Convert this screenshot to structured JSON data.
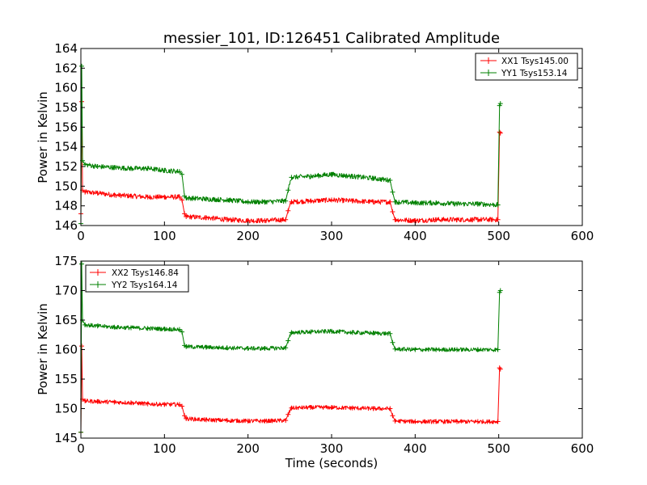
{
  "figure": {
    "title": "messier_101, ID:126451 Calibrated Amplitude"
  },
  "chart_data": [
    {
      "type": "line",
      "title": "messier_101, ID:126451 Calibrated Amplitude",
      "xlabel": "",
      "ylabel": "Power in Kelvin",
      "xlim": [
        0,
        600
      ],
      "ylim": [
        146,
        164
      ],
      "xticks": [
        0,
        100,
        200,
        300,
        400,
        500,
        600
      ],
      "yticks": [
        146,
        148,
        150,
        152,
        154,
        156,
        158,
        160,
        162,
        164
      ],
      "grid": false,
      "legend_position": "top-right",
      "marker": "+",
      "series": [
        {
          "name": "XX1 Tsys145.00",
          "color": "#ff0000",
          "points": [
            [
              0,
              147.2
            ],
            [
              1,
              158.6
            ],
            [
              2,
              149.6
            ],
            [
              5,
              149.4
            ],
            [
              20,
              149.3
            ],
            [
              40,
              149.1
            ],
            [
              60,
              149.0
            ],
            [
              80,
              148.9
            ],
            [
              100,
              148.9
            ],
            [
              118,
              148.9
            ],
            [
              121,
              148.6
            ],
            [
              124,
              147.2
            ],
            [
              126,
              146.9
            ],
            [
              150,
              146.8
            ],
            [
              175,
              146.6
            ],
            [
              200,
              146.5
            ],
            [
              220,
              146.5
            ],
            [
              245,
              146.6
            ],
            [
              248,
              147.5
            ],
            [
              252,
              148.4
            ],
            [
              275,
              148.5
            ],
            [
              300,
              148.6
            ],
            [
              325,
              148.5
            ],
            [
              350,
              148.4
            ],
            [
              370,
              148.4
            ],
            [
              373,
              147.4
            ],
            [
              376,
              146.6
            ],
            [
              400,
              146.5
            ],
            [
              425,
              146.6
            ],
            [
              450,
              146.6
            ],
            [
              475,
              146.6
            ],
            [
              499,
              146.6
            ],
            [
              501,
              155.5
            ],
            [
              502,
              155.4
            ]
          ],
          "noise": 0.25
        },
        {
          "name": "YY1 Tsys153.14",
          "color": "#008000",
          "points": [
            [
              0,
              146.2
            ],
            [
              1,
              162.2
            ],
            [
              2,
              152.6
            ],
            [
              5,
              152.2
            ],
            [
              20,
              152.0
            ],
            [
              40,
              151.9
            ],
            [
              60,
              151.8
            ],
            [
              80,
              151.8
            ],
            [
              100,
              151.6
            ],
            [
              118,
              151.5
            ],
            [
              121,
              151.2
            ],
            [
              124,
              149.0
            ],
            [
              126,
              148.8
            ],
            [
              150,
              148.7
            ],
            [
              175,
              148.6
            ],
            [
              200,
              148.4
            ],
            [
              220,
              148.4
            ],
            [
              245,
              148.5
            ],
            [
              248,
              149.6
            ],
            [
              252,
              150.9
            ],
            [
              275,
              151.0
            ],
            [
              300,
              151.2
            ],
            [
              325,
              151.0
            ],
            [
              350,
              150.8
            ],
            [
              370,
              150.6
            ],
            [
              373,
              149.4
            ],
            [
              376,
              148.4
            ],
            [
              400,
              148.3
            ],
            [
              425,
              148.3
            ],
            [
              450,
              148.2
            ],
            [
              475,
              148.2
            ],
            [
              499,
              148.1
            ],
            [
              501,
              158.2
            ],
            [
              502,
              158.4
            ]
          ],
          "noise": 0.25
        }
      ]
    },
    {
      "type": "line",
      "title": "",
      "xlabel": "Time (seconds)",
      "ylabel": "Power in Kelvin",
      "xlim": [
        0,
        600
      ],
      "ylim": [
        145,
        175
      ],
      "xticks": [
        0,
        100,
        200,
        300,
        400,
        500,
        600
      ],
      "yticks": [
        145,
        150,
        155,
        160,
        165,
        170,
        175
      ],
      "grid": false,
      "legend_position": "top-left",
      "marker": "+",
      "series": [
        {
          "name": "XX2 Tsys146.84",
          "color": "#ff0000",
          "points": [
            [
              0,
              146.0
            ],
            [
              1,
              160.6
            ],
            [
              2,
              151.6
            ],
            [
              5,
              151.3
            ],
            [
              20,
              151.2
            ],
            [
              40,
              151.1
            ],
            [
              60,
              151.0
            ],
            [
              80,
              150.8
            ],
            [
              100,
              150.7
            ],
            [
              118,
              150.7
            ],
            [
              121,
              150.4
            ],
            [
              124,
              148.8
            ],
            [
              126,
              148.3
            ],
            [
              150,
              148.1
            ],
            [
              175,
              148.0
            ],
            [
              200,
              147.9
            ],
            [
              220,
              147.9
            ],
            [
              245,
              148.0
            ],
            [
              248,
              149.0
            ],
            [
              252,
              150.1
            ],
            [
              275,
              150.2
            ],
            [
              300,
              150.2
            ],
            [
              325,
              150.1
            ],
            [
              350,
              150.0
            ],
            [
              370,
              150.0
            ],
            [
              373,
              148.8
            ],
            [
              376,
              147.9
            ],
            [
              400,
              147.8
            ],
            [
              425,
              147.8
            ],
            [
              450,
              147.8
            ],
            [
              475,
              147.8
            ],
            [
              499,
              147.8
            ],
            [
              501,
              156.9
            ],
            [
              502,
              156.7
            ]
          ],
          "noise": 0.35
        },
        {
          "name": "YY2 Tsys164.14",
          "color": "#008000",
          "points": [
            [
              0,
              146.0
            ],
            [
              1,
              174.5
            ],
            [
              2,
              165.0
            ],
            [
              5,
              164.2
            ],
            [
              20,
              164.0
            ],
            [
              40,
              163.8
            ],
            [
              60,
              163.7
            ],
            [
              80,
              163.6
            ],
            [
              100,
              163.5
            ],
            [
              118,
              163.4
            ],
            [
              121,
              163.0
            ],
            [
              124,
              160.7
            ],
            [
              126,
              160.5
            ],
            [
              150,
              160.4
            ],
            [
              175,
              160.3
            ],
            [
              200,
              160.2
            ],
            [
              220,
              160.2
            ],
            [
              245,
              160.3
            ],
            [
              248,
              161.5
            ],
            [
              252,
              162.9
            ],
            [
              275,
              163.0
            ],
            [
              300,
              163.1
            ],
            [
              325,
              162.9
            ],
            [
              350,
              162.8
            ],
            [
              370,
              162.7
            ],
            [
              373,
              161.2
            ],
            [
              376,
              160.1
            ],
            [
              400,
              160.0
            ],
            [
              425,
              160.0
            ],
            [
              450,
              160.0
            ],
            [
              475,
              160.0
            ],
            [
              499,
              160.0
            ],
            [
              501,
              169.7
            ],
            [
              502,
              170.0
            ]
          ],
          "noise": 0.35
        }
      ]
    }
  ]
}
